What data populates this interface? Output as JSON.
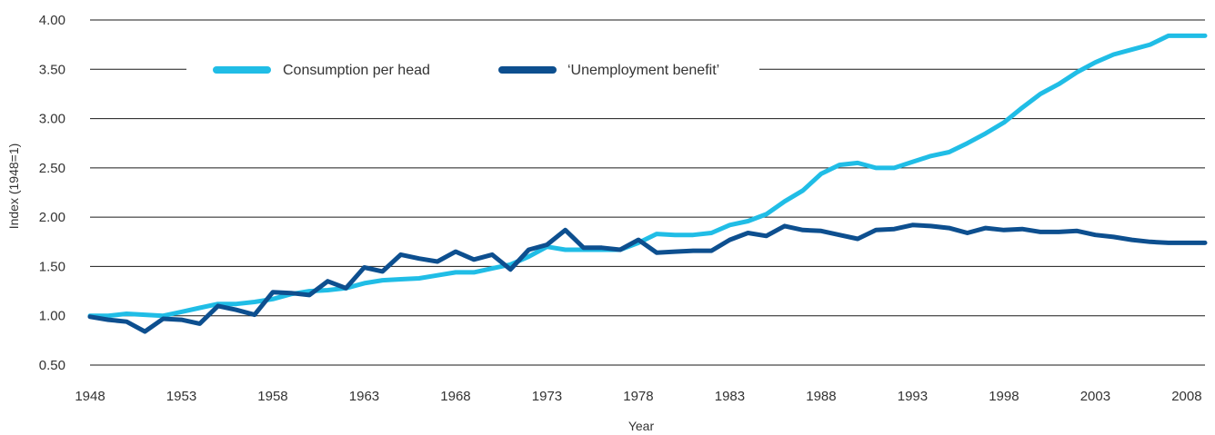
{
  "chart_data": {
    "type": "line",
    "title": "",
    "xlabel": "Year",
    "ylabel": "Index (1948=1)",
    "xlim": [
      1948,
      2009
    ],
    "ylim": [
      0.5,
      4.0
    ],
    "grid": true,
    "legend_position": "top",
    "x_ticks": [
      1948,
      1953,
      1958,
      1963,
      1968,
      1973,
      1978,
      1983,
      1988,
      1993,
      1998,
      2003,
      2008
    ],
    "y_ticks": [
      "0.50",
      "1.00",
      "1.50",
      "2.00",
      "2.50",
      "3.00",
      "3.50",
      "4.00"
    ],
    "x": [
      1948,
      1949,
      1950,
      1951,
      1952,
      1953,
      1954,
      1955,
      1956,
      1957,
      1958,
      1959,
      1960,
      1961,
      1962,
      1963,
      1964,
      1965,
      1966,
      1967,
      1968,
      1969,
      1970,
      1971,
      1972,
      1973,
      1974,
      1975,
      1976,
      1977,
      1978,
      1979,
      1980,
      1981,
      1982,
      1983,
      1984,
      1985,
      1986,
      1987,
      1988,
      1989,
      1990,
      1991,
      1992,
      1993,
      1994,
      1995,
      1996,
      1997,
      1998,
      1999,
      2000,
      2001,
      2002,
      2003,
      2004,
      2005,
      2006,
      2007,
      2008,
      2009
    ],
    "series": [
      {
        "name": "Consumption per head",
        "color": "#20bde6",
        "values": [
          1.0,
          1.0,
          1.02,
          1.01,
          1.0,
          1.04,
          1.08,
          1.12,
          1.12,
          1.14,
          1.17,
          1.22,
          1.25,
          1.26,
          1.28,
          1.33,
          1.36,
          1.37,
          1.38,
          1.41,
          1.44,
          1.44,
          1.48,
          1.52,
          1.6,
          1.7,
          1.67,
          1.67,
          1.67,
          1.67,
          1.74,
          1.83,
          1.82,
          1.82,
          1.84,
          1.92,
          1.96,
          2.03,
          2.16,
          2.27,
          2.44,
          2.53,
          2.55,
          2.5,
          2.5,
          2.56,
          2.62,
          2.66,
          2.75,
          2.85,
          2.96,
          3.11,
          3.25,
          3.35,
          3.47,
          3.57,
          3.65,
          3.7,
          3.75,
          3.84,
          3.84,
          3.84
        ]
      },
      {
        "name": "‘Unemployment benefit’",
        "color": "#0d4f8f",
        "values": [
          0.99,
          0.96,
          0.94,
          0.84,
          0.97,
          0.96,
          0.92,
          1.1,
          1.06,
          1.01,
          1.24,
          1.23,
          1.21,
          1.35,
          1.28,
          1.49,
          1.45,
          1.62,
          1.58,
          1.55,
          1.65,
          1.57,
          1.62,
          1.47,
          1.67,
          1.72,
          1.87,
          1.69,
          1.69,
          1.67,
          1.77,
          1.64,
          1.65,
          1.66,
          1.66,
          1.77,
          1.84,
          1.81,
          1.91,
          1.87,
          1.86,
          1.82,
          1.78,
          1.87,
          1.88,
          1.92,
          1.91,
          1.89,
          1.84,
          1.89,
          1.87,
          1.88,
          1.85,
          1.85,
          1.86,
          1.82,
          1.8,
          1.77,
          1.75,
          1.74,
          1.74,
          1.74
        ]
      }
    ]
  }
}
